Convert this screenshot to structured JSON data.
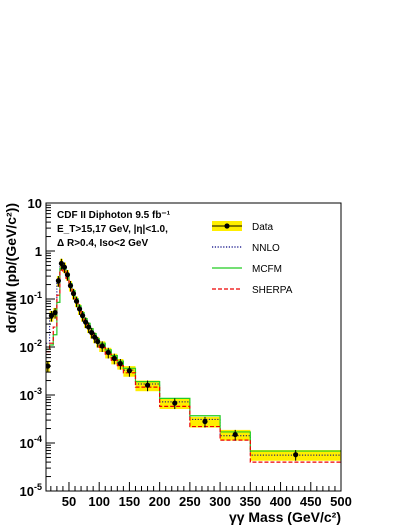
{
  "chart_data": {
    "type": "line",
    "xlabel": "γγ Mass (GeV/c²)",
    "ylabel": "dσ/dM (pb/(GeV/c²))",
    "xlim": [
      12,
      500
    ],
    "ylim": [
      1e-05,
      10
    ],
    "y_scale": "log",
    "grid": false,
    "legend_position": "top-right",
    "x_ticks": [
      50,
      100,
      150,
      200,
      250,
      300,
      350,
      400,
      450,
      500
    ],
    "x_tick_labels": [
      "50",
      "100",
      "150",
      "200",
      "250",
      "300",
      "350",
      "400",
      "450",
      "500"
    ],
    "y_ticks": [
      1e-05,
      0.0001,
      0.001,
      0.01,
      0.1,
      1,
      10
    ],
    "y_tick_labels": [
      {
        "base": "10",
        "exp": "-5"
      },
      {
        "base": "10",
        "exp": "-4"
      },
      {
        "base": "10",
        "exp": "-3"
      },
      {
        "base": "10",
        "exp": "-2"
      },
      {
        "base": "10",
        "exp": "-1"
      },
      {
        "base": "1",
        "exp": ""
      },
      {
        "base": "10",
        "exp": ""
      }
    ],
    "annotations": {
      "line1": "CDF II  Diphoton   9.5 fb⁻¹",
      "line2": "E_T>15,17 GeV, |η|<1.0,",
      "line3": "Δ R>0.4, Iso<2 GeV"
    },
    "legend": [
      {
        "label": "Data",
        "style": "marker-band",
        "color": "#000000",
        "band_color": "#ffee00"
      },
      {
        "label": "NNLO",
        "style": "dotted",
        "color": "#000080"
      },
      {
        "label": "MCFM",
        "style": "solid",
        "color": "#22cc22"
      },
      {
        "label": "SHERPA",
        "style": "dashed",
        "color": "#ee0000"
      }
    ],
    "bin_edges": [
      12,
      18,
      24,
      30,
      35,
      40,
      45,
      50,
      55,
      60,
      65,
      70,
      75,
      80,
      85,
      90,
      95,
      100,
      110,
      120,
      130,
      140,
      160,
      200,
      250,
      300,
      350,
      500
    ],
    "data": {
      "name": "Data",
      "x": [
        15,
        21,
        27,
        32.5,
        37.5,
        42.5,
        47.5,
        52.5,
        57.5,
        62.5,
        67.5,
        72.5,
        77.5,
        82.5,
        87.5,
        92.5,
        97.5,
        105,
        115,
        125,
        135,
        150,
        180,
        225,
        275,
        325,
        425
      ],
      "y": [
        0.004,
        0.045,
        0.052,
        0.24,
        0.55,
        0.46,
        0.32,
        0.19,
        0.13,
        0.09,
        0.062,
        0.045,
        0.033,
        0.026,
        0.02,
        0.016,
        0.013,
        0.0105,
        0.0077,
        0.0058,
        0.0045,
        0.0032,
        0.0016,
        0.00068,
        0.00028,
        0.00015,
        5.7e-05
      ],
      "uncert_rel": 0.25
    },
    "series": [
      {
        "name": "NNLO",
        "values": [
          0.012,
          0.04,
          0.05,
          0.21,
          0.47,
          0.44,
          0.3,
          0.2,
          0.14,
          0.095,
          0.067,
          0.048,
          0.036,
          0.028,
          0.022,
          0.017,
          0.014,
          0.011,
          0.0079,
          0.006,
          0.0047,
          0.0033,
          0.0017,
          0.00072,
          0.00031,
          0.000142,
          5.6e-05
        ]
      },
      {
        "name": "MCFM",
        "values": [
          0.009,
          0.011,
          0.018,
          0.085,
          0.43,
          0.42,
          0.31,
          0.21,
          0.15,
          0.102,
          0.072,
          0.052,
          0.039,
          0.031,
          0.024,
          0.019,
          0.015,
          0.012,
          0.0087,
          0.0066,
          0.0051,
          0.0036,
          0.0019,
          0.00085,
          0.00037,
          0.00017,
          6.8e-05
        ]
      },
      {
        "name": "SHERPA",
        "values": [
          0.008,
          0.012,
          0.026,
          0.12,
          0.4,
          0.38,
          0.27,
          0.18,
          0.125,
          0.086,
          0.061,
          0.044,
          0.032,
          0.025,
          0.019,
          0.0152,
          0.0122,
          0.0098,
          0.0071,
          0.0053,
          0.0041,
          0.0029,
          0.00146,
          0.00058,
          0.00022,
          0.000115,
          4e-05
        ]
      }
    ]
  }
}
